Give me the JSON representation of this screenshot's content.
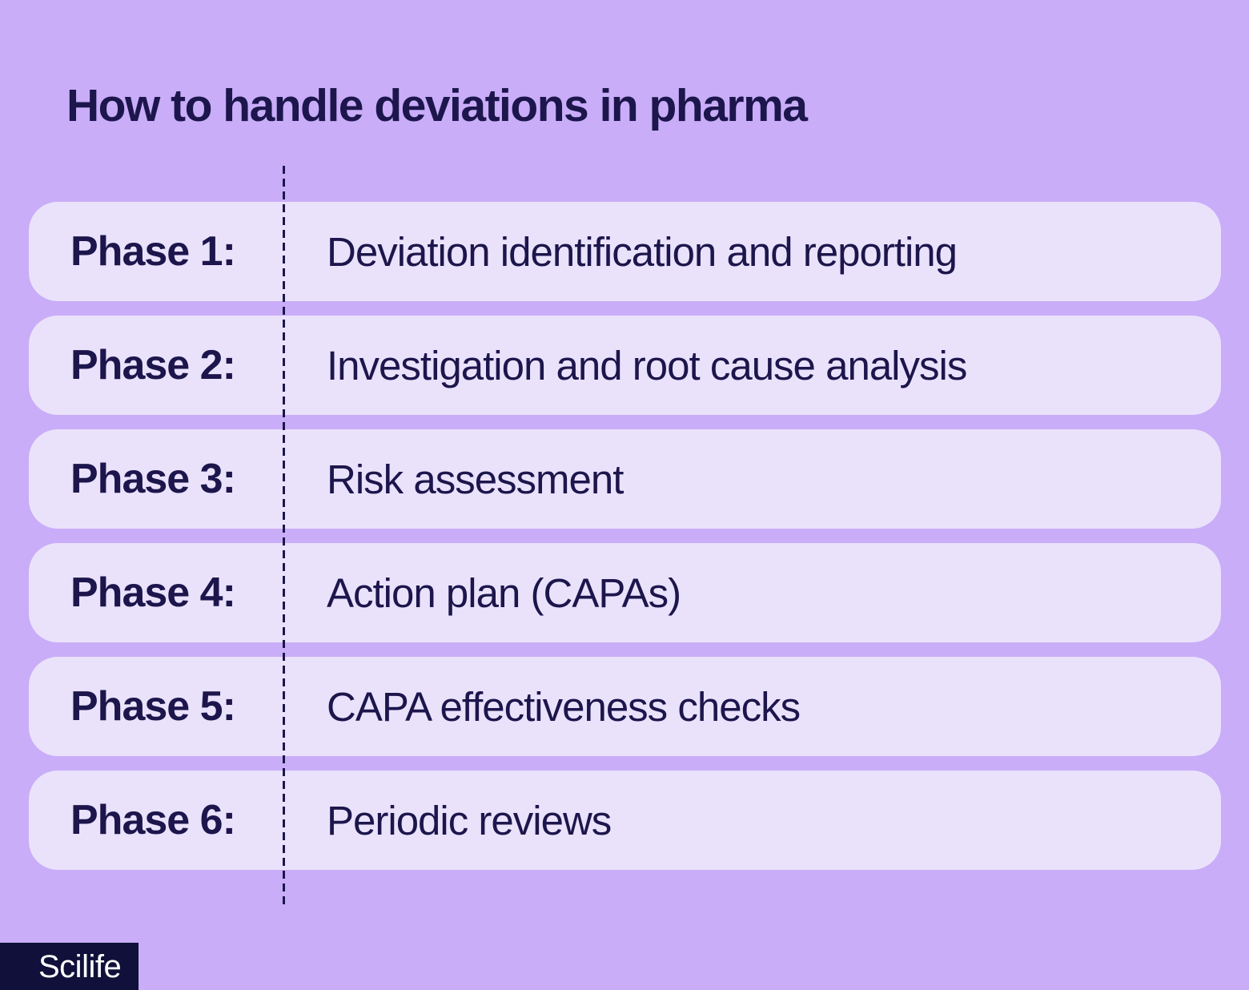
{
  "title": "How to handle deviations in pharma",
  "colors": {
    "background": "#c9adf8",
    "row_bg": "#eae2fb",
    "text_dark": "#1c164c",
    "logo_bg": "#10103a",
    "logo_text": "#ffffff"
  },
  "phases": [
    {
      "label": "Phase 1:",
      "description": "Deviation identification and reporting"
    },
    {
      "label": "Phase 2:",
      "description": "Investigation and root cause analysis"
    },
    {
      "label": "Phase 3:",
      "description": "Risk assessment"
    },
    {
      "label": "Phase 4:",
      "description": "Action plan (CAPAs)"
    },
    {
      "label": "Phase 5:",
      "description": "CAPA effectiveness checks"
    },
    {
      "label": "Phase 6:",
      "description": "Periodic reviews"
    }
  ],
  "logo": {
    "text": "Scilife"
  }
}
